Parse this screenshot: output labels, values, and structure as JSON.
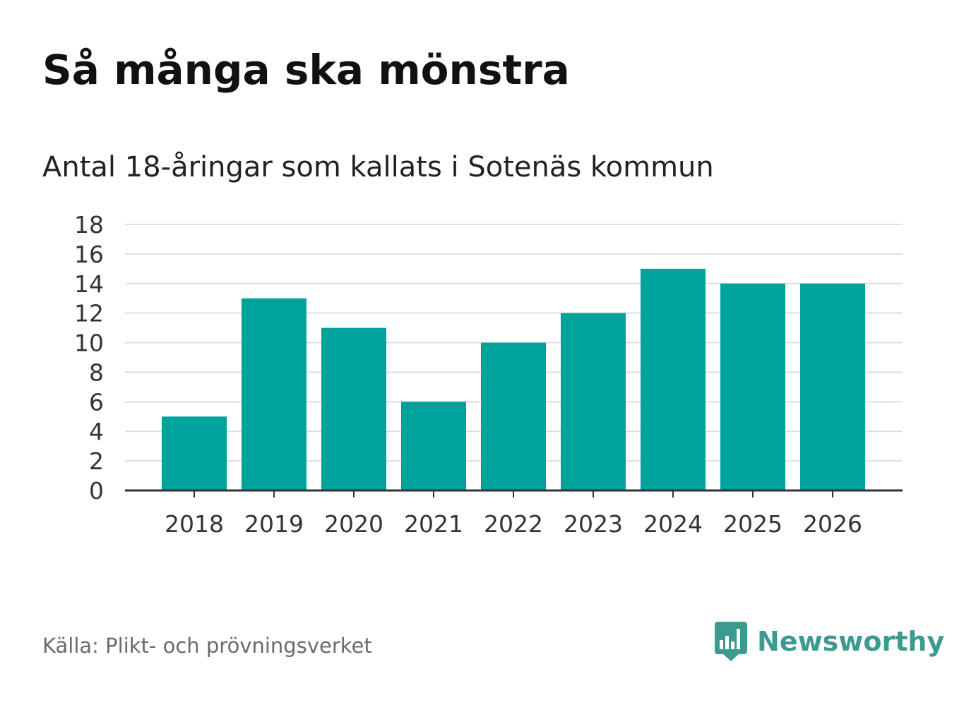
{
  "title": "Så många ska mönstra",
  "subtitle": "Antal 18-åringar som kallats i Sotenäs kommun",
  "source": "Källa: Plikt- och prövningsverket",
  "brand": {
    "name": "Newsworthy",
    "icon": "newsworthy-logo-icon",
    "color": "#3d9a8f"
  },
  "colors": {
    "bar": "#00a39b",
    "grid": "#dddddd",
    "axis": "#333333"
  },
  "chart_data": {
    "type": "bar",
    "title": "Så många ska mönstra",
    "subtitle": "Antal 18-åringar som kallats i Sotenäs kommun",
    "xlabel": "",
    "ylabel": "",
    "categories": [
      "2018",
      "2019",
      "2020",
      "2021",
      "2022",
      "2023",
      "2024",
      "2025",
      "2026"
    ],
    "values": [
      5,
      13,
      11,
      6,
      10,
      12,
      15,
      14,
      14
    ],
    "ylim": [
      0,
      18
    ],
    "yticks": [
      0,
      2,
      4,
      6,
      8,
      10,
      12,
      14,
      16,
      18
    ],
    "grid": true
  }
}
